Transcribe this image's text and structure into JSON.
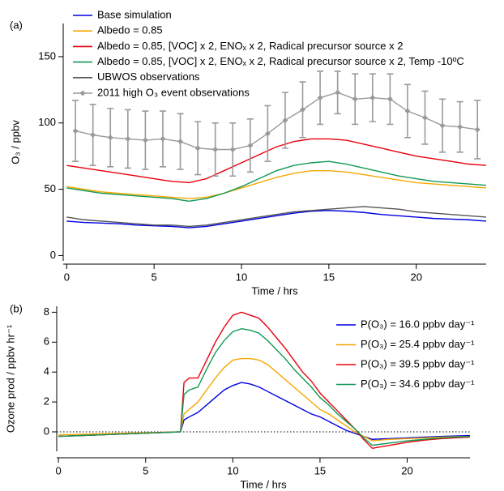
{
  "chart_data": [
    {
      "type": "line",
      "panel_label": "(a)",
      "x_label": "Time / hrs",
      "y_label": "O₃ / ppbv",
      "xlim": [
        -0.2,
        24
      ],
      "xticks": [
        0,
        5,
        10,
        15,
        20
      ],
      "ylim": [
        -4,
        175
      ],
      "yticks": [
        0,
        50,
        100,
        150
      ],
      "legend": "upper left",
      "x": [
        0,
        1,
        2,
        3,
        4,
        5,
        6,
        7,
        8,
        9,
        10,
        11,
        12,
        13,
        14,
        15,
        16,
        17,
        18,
        19,
        20,
        21,
        22,
        23,
        24
      ],
      "series": [
        {
          "name": "Base simulation",
          "color": "#0000e0",
          "values": [
            26,
            25,
            24.5,
            24,
            23,
            22.5,
            22,
            21,
            22,
            24,
            26,
            28,
            30,
            32,
            33.5,
            34,
            33.5,
            32.5,
            31,
            30,
            29,
            28,
            27.5,
            27,
            26
          ]
        },
        {
          "name": "Albedo = 0.85",
          "color": "#f5a800",
          "values": [
            52,
            50,
            48,
            47,
            46,
            45,
            44,
            43,
            44,
            47,
            51,
            55,
            59,
            62,
            64,
            64,
            63,
            61,
            59,
            57,
            55,
            54,
            53,
            52,
            51
          ]
        },
        {
          "name": "Albedo = 0.85, [VOC] x 2, ENOₓ x 2, Radical precursor source x 2",
          "color": "#e8000b",
          "values": [
            68,
            66,
            64,
            62,
            60,
            58,
            56,
            55,
            58,
            64,
            70,
            76,
            82,
            86,
            88,
            88,
            87,
            84,
            81,
            78,
            75,
            73,
            71,
            69,
            68
          ]
        },
        {
          "name": "Albedo = 0.85, [VOC] x 2, ENOₓ x 2, Radical precursor source x 2, Temp -10ºC",
          "color": "#119955",
          "values": [
            51,
            49,
            47,
            46,
            45,
            44,
            43,
            41,
            43,
            47,
            52,
            58,
            64,
            68,
            70,
            71,
            69,
            66,
            63,
            60,
            58,
            56,
            55,
            54,
            53
          ]
        },
        {
          "name": "UBWOS observations",
          "color": "#555555",
          "values": [
            29,
            27,
            26,
            25,
            24,
            23,
            23,
            22,
            23,
            25,
            27,
            29,
            31,
            33,
            34,
            35,
            36,
            37,
            36,
            35,
            33,
            32,
            31,
            30,
            29
          ]
        },
        {
          "name": "2011 high O₃ event observations",
          "color": "#9a9a9a",
          "marker": "diamond",
          "x": [
            0.5,
            1.5,
            2.5,
            3.5,
            4.5,
            5.5,
            6.5,
            7.5,
            8.5,
            9.5,
            10.5,
            11.5,
            12.5,
            13.5,
            14.5,
            15.5,
            16.5,
            17.5,
            18.5,
            19.5,
            20.5,
            21.5,
            22.5,
            23.5
          ],
          "values": [
            94,
            91,
            89,
            88,
            87,
            88,
            86,
            81,
            80,
            80,
            83,
            92,
            102,
            110,
            119,
            123,
            118,
            119,
            118,
            109,
            104,
            98,
            97,
            95
          ],
          "errors": [
            23,
            23,
            22,
            22,
            22,
            21,
            21,
            20,
            20,
            20,
            20,
            21,
            21,
            21,
            20,
            16,
            19,
            18,
            19,
            20,
            20,
            20,
            19,
            22
          ]
        }
      ]
    },
    {
      "type": "line",
      "panel_label": "(b)",
      "x_label": "Time / hrs",
      "y_label": "Ozone prod / ppbv hr⁻¹",
      "xlim": [
        -0.1,
        23.6
      ],
      "xticks": [
        0,
        5,
        10,
        15,
        20
      ],
      "ylim": [
        -1.3,
        8.4
      ],
      "yticks": [
        0,
        2,
        4,
        6,
        8
      ],
      "hline": 0,
      "legend": "upper right",
      "x": [
        0,
        7,
        7.2,
        7.5,
        8,
        8.5,
        9,
        9.5,
        10,
        10.5,
        11,
        11.5,
        12,
        12.5,
        13,
        13.5,
        14,
        14.5,
        15,
        15.5,
        16,
        16.5,
        17,
        17.5,
        18,
        19,
        20,
        21,
        22,
        23.6
      ],
      "series": [
        {
          "name": "P(O₃) = 16.0 ppbv day⁻¹",
          "color": "#0000e0",
          "values": [
            -0.3,
            0,
            0.8,
            1.0,
            1.3,
            1.8,
            2.3,
            2.8,
            3.1,
            3.3,
            3.2,
            3.0,
            2.7,
            2.4,
            2.1,
            1.8,
            1.5,
            1.2,
            1.0,
            0.7,
            0.4,
            0.1,
            -0.1,
            -0.3,
            -0.5,
            -0.45,
            -0.4,
            -0.35,
            -0.3,
            -0.25
          ]
        },
        {
          "name": "P(O₃) = 25.4 ppbv day⁻¹",
          "color": "#f5a800",
          "values": [
            -0.2,
            0,
            1.2,
            1.5,
            2.0,
            2.8,
            3.6,
            4.3,
            4.8,
            4.9,
            4.9,
            4.8,
            4.5,
            4.0,
            3.5,
            3.0,
            2.5,
            2.0,
            1.5,
            1.2,
            0.8,
            0.4,
            0,
            -0.3,
            -0.6,
            -0.5,
            -0.45,
            -0.4,
            -0.35,
            -0.3
          ]
        },
        {
          "name": "P(O₃) = 39.5 ppbv day⁻¹",
          "color": "#e8000b",
          "values": [
            -0.3,
            0,
            3.3,
            3.6,
            3.6,
            4.8,
            6.0,
            7.0,
            7.8,
            8.0,
            7.8,
            7.6,
            7.0,
            6.3,
            5.6,
            4.8,
            4.0,
            3.4,
            2.6,
            2.0,
            1.4,
            0.8,
            0.2,
            -0.5,
            -1.1,
            -0.9,
            -0.7,
            -0.55,
            -0.45,
            -0.35
          ]
        },
        {
          "name": "P(O₃) = 34.6 ppbv day⁻¹",
          "color": "#119955",
          "values": [
            -0.3,
            0,
            2.5,
            2.8,
            3.0,
            4.2,
            5.3,
            6.1,
            6.7,
            6.9,
            6.8,
            6.6,
            6.1,
            5.5,
            4.9,
            4.2,
            3.6,
            3.0,
            2.3,
            1.8,
            1.2,
            0.7,
            0.2,
            -0.4,
            -0.9,
            -0.75,
            -0.6,
            -0.5,
            -0.4,
            -0.3
          ]
        }
      ]
    }
  ]
}
